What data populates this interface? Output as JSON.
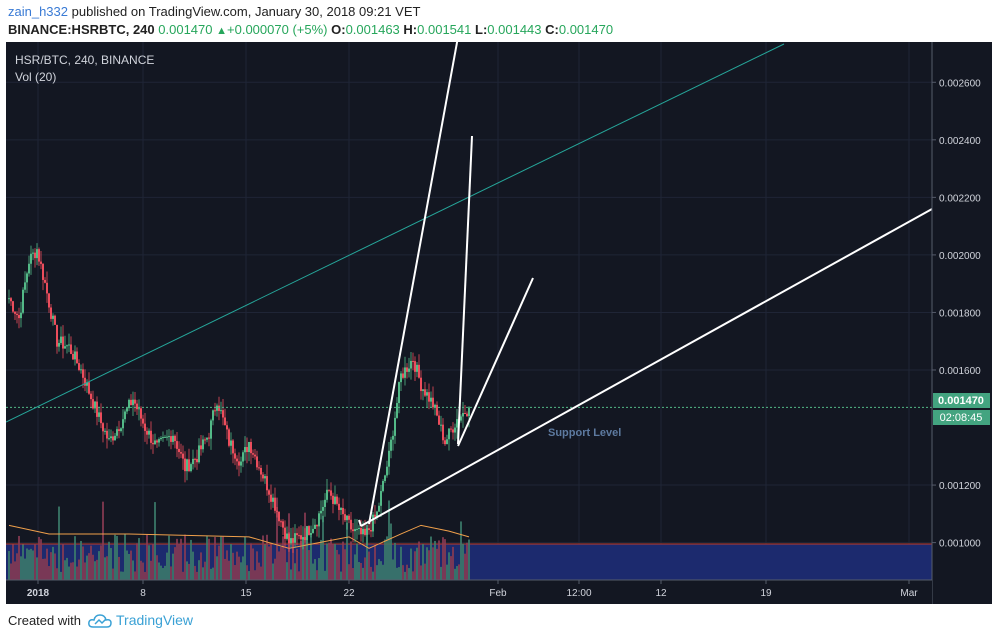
{
  "header": {
    "author": "zain_h332",
    "published_text": "published on TradingView.com, January 30, 2018 09:21 VET",
    "symbol_line": "BINANCE:HSRBTC, 240",
    "last": "0.001470",
    "change": "+0.000070 (+5%)",
    "open_label": "O:",
    "open": "0.001463",
    "high_label": "H:",
    "high": "0.001541",
    "low_label": "L:",
    "low": "0.001443",
    "close_label": "C:",
    "close": "0.001470"
  },
  "legend": {
    "symbol": "HSR/BTC, 240, BINANCE",
    "volume": "Vol (20)"
  },
  "price_axis": {
    "ticks": [
      "0.002600",
      "0.002400",
      "0.002200",
      "0.002000",
      "0.001800",
      "0.001600",
      "0.001200",
      "0.001000"
    ],
    "last_price": "0.001470",
    "countdown": "02:08:45"
  },
  "time_axis": {
    "ticks": [
      "2018",
      "8",
      "15",
      "22",
      "Feb",
      "12:00",
      "12",
      "19",
      "Mar"
    ]
  },
  "annotations": {
    "support_label": "Support Level"
  },
  "footer": {
    "created_with": "Created with",
    "brand": "TradingView"
  },
  "colors": {
    "background": "#131722",
    "grid": "#1f2536",
    "up": "#53b987",
    "down": "#eb4d5c",
    "vol_up": "#3c7d6b",
    "vol_down": "#8a3b52",
    "ma_line": "#f0a04b",
    "channel_line": "#26a69a",
    "drawing": "#ffffff",
    "last_price_tag": "#43a480",
    "volume_zone": "#1c2a6e"
  },
  "chart_data": {
    "type": "candlestick",
    "symbol": "HSR/BTC",
    "timeframe": "240",
    "ylim": [
      0.00087,
      0.00274
    ],
    "last_price": 0.00147,
    "x": [
      "2018",
      "8",
      "15",
      "22",
      "Feb",
      "12:00",
      "12",
      "19",
      "Mar"
    ],
    "anchors": [
      {
        "bar": 0,
        "close": 0.00185
      },
      {
        "bar": 5,
        "close": 0.00178
      },
      {
        "bar": 10,
        "close": 0.00198
      },
      {
        "bar": 14,
        "close": 0.00202
      },
      {
        "bar": 18,
        "close": 0.0019
      },
      {
        "bar": 24,
        "close": 0.0017
      },
      {
        "bar": 30,
        "close": 0.00168
      },
      {
        "bar": 36,
        "close": 0.0016
      },
      {
        "bar": 44,
        "close": 0.00145
      },
      {
        "bar": 50,
        "close": 0.00135
      },
      {
        "bar": 56,
        "close": 0.00142
      },
      {
        "bar": 62,
        "close": 0.0015
      },
      {
        "bar": 68,
        "close": 0.0014
      },
      {
        "bar": 74,
        "close": 0.00133
      },
      {
        "bar": 82,
        "close": 0.00138
      },
      {
        "bar": 88,
        "close": 0.00126
      },
      {
        "bar": 94,
        "close": 0.0013
      },
      {
        "bar": 100,
        "close": 0.00138
      },
      {
        "bar": 104,
        "close": 0.0015
      },
      {
        "bar": 110,
        "close": 0.00135
      },
      {
        "bar": 116,
        "close": 0.00128
      },
      {
        "bar": 120,
        "close": 0.00135
      },
      {
        "bar": 126,
        "close": 0.00125
      },
      {
        "bar": 132,
        "close": 0.00115
      },
      {
        "bar": 140,
        "close": 0.001
      },
      {
        "bar": 148,
        "close": 0.00103
      },
      {
        "bar": 154,
        "close": 0.00108
      },
      {
        "bar": 160,
        "close": 0.00118
      },
      {
        "bar": 166,
        "close": 0.0011
      },
      {
        "bar": 172,
        "close": 0.00104
      },
      {
        "bar": 178,
        "close": 0.00102
      },
      {
        "bar": 184,
        "close": 0.0011
      },
      {
        "bar": 190,
        "close": 0.0013
      },
      {
        "bar": 196,
        "close": 0.00158
      },
      {
        "bar": 202,
        "close": 0.00164
      },
      {
        "bar": 206,
        "close": 0.00155
      },
      {
        "bar": 212,
        "close": 0.00148
      },
      {
        "bar": 218,
        "close": 0.00135
      },
      {
        "bar": 224,
        "close": 0.00143
      },
      {
        "bar": 230,
        "close": 0.00147
      }
    ],
    "volume_ma": [
      {
        "bar": 0,
        "v": 0.00106
      },
      {
        "bar": 20,
        "v": 0.00103
      },
      {
        "bar": 60,
        "v": 0.00103
      },
      {
        "bar": 120,
        "v": 0.00102
      },
      {
        "bar": 140,
        "v": 0.00098
      },
      {
        "bar": 170,
        "v": 0.00102
      },
      {
        "bar": 180,
        "v": 0.00098
      },
      {
        "bar": 196,
        "v": 0.00103
      },
      {
        "bar": 206,
        "v": 0.00106
      },
      {
        "bar": 220,
        "v": 0.00104
      },
      {
        "bar": 230,
        "v": 0.00102
      }
    ]
  }
}
